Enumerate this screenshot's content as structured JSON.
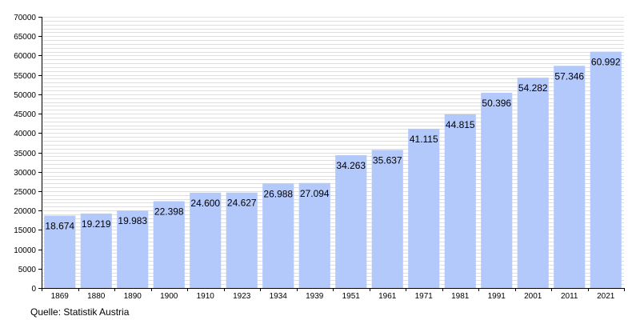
{
  "chart_data": {
    "type": "bar",
    "categories": [
      "1869",
      "1880",
      "1890",
      "1900",
      "1910",
      "1923",
      "1934",
      "1939",
      "1951",
      "1961",
      "1971",
      "1981",
      "1991",
      "2001",
      "2011",
      "2021"
    ],
    "values": [
      18674,
      19219,
      19983,
      22398,
      24600,
      24627,
      26988,
      27094,
      34263,
      35637,
      41115,
      44815,
      50396,
      54282,
      57346,
      60992
    ],
    "value_labels": [
      "18.674",
      "19.219",
      "19.983",
      "22.398",
      "24.600",
      "24.627",
      "26.988",
      "27.094",
      "34.263",
      "35.637",
      "41.115",
      "44.815",
      "50.396",
      "54.282",
      "57.346",
      "60.992"
    ],
    "title": "",
    "xlabel": "",
    "ylabel": "",
    "ylim": [
      0,
      70000
    ],
    "yticks": [
      0,
      5000,
      10000,
      15000,
      20000,
      25000,
      30000,
      35000,
      40000,
      45000,
      50000,
      55000,
      60000,
      65000,
      70000
    ],
    "ytick_labels": [
      "0",
      "5000",
      "10000",
      "15000",
      "20000",
      "25000",
      "30000",
      "35000",
      "40000",
      "45000",
      "50000",
      "55000",
      "60000",
      "65000",
      "70000"
    ],
    "minor_grid_step": 1000,
    "grid": true,
    "legend": "none",
    "bar_color": "#b3c8fb",
    "grid_color": "#bfbfbf"
  },
  "source_label": "Quelle: Statistik Austria"
}
